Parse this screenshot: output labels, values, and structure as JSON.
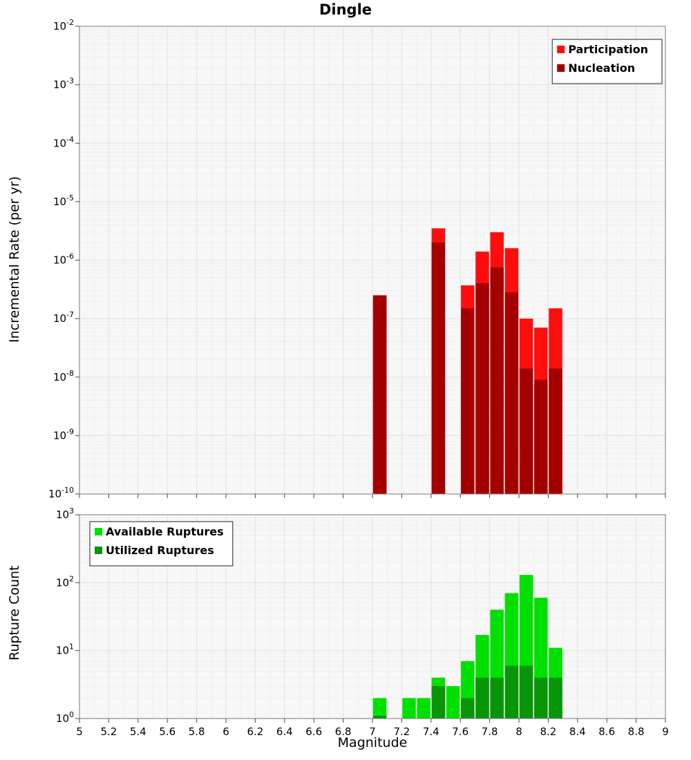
{
  "chart_data": [
    {
      "type": "bar",
      "title": "Dingle",
      "ylabel": "Incremental Rate (per yr)",
      "y_scale": "log",
      "ylim_exp": [
        -10,
        -2
      ],
      "xlim": [
        5,
        9
      ],
      "bin_width": 0.1,
      "grid": true,
      "legend_position": "top-right",
      "y_tick_exponents": [
        -2,
        -3,
        -4,
        -5,
        -6,
        -7,
        -8,
        -9,
        -10
      ],
      "x_ticks": [
        5,
        5.2,
        5.4,
        5.6,
        5.8,
        6,
        6.2,
        6.4,
        6.6,
        6.8,
        7,
        7.2,
        7.4,
        7.6,
        7.8,
        8,
        8.2,
        8.4,
        8.6,
        8.8,
        9
      ],
      "x_tick_labels": [
        "5",
        "5.2",
        "5.4",
        "5.6",
        "5.8",
        "6",
        "6.2",
        "6.4",
        "6.6",
        "6.8",
        "7",
        "7.2",
        "7.4",
        "7.6",
        "7.8",
        "8",
        "8.2",
        "8.4",
        "8.6",
        "8.8",
        "9"
      ],
      "x_tick_labels_visible": false,
      "series": [
        {
          "name": "Participation",
          "color": "#FF0D0D",
          "x": [
            7.05,
            7.45,
            7.65,
            7.75,
            7.85,
            7.95,
            8.05,
            8.15,
            8.25
          ],
          "values": [
            2.5e-07,
            3.5e-06,
            3.7e-07,
            1.4e-06,
            3e-06,
            1.6e-06,
            1e-07,
            7e-08,
            1.5e-07
          ]
        },
        {
          "name": "Nucleation",
          "color": "#A40000",
          "x": [
            7.05,
            7.45,
            7.65,
            7.75,
            7.85,
            7.95,
            8.05,
            8.15,
            8.25
          ],
          "values": [
            2.5e-07,
            2e-06,
            1.5e-07,
            4e-07,
            7.5e-07,
            2.8e-07,
            1.4e-08,
            9e-09,
            1.4e-08
          ]
        }
      ]
    },
    {
      "type": "bar",
      "title": "",
      "ylabel": "Rupture Count",
      "xlabel": "Magnitude",
      "y_scale": "log",
      "ylim_exp": [
        0,
        3
      ],
      "xlim": [
        5,
        9
      ],
      "bin_width": 0.1,
      "grid": true,
      "legend_position": "top-left",
      "y_tick_exponents": [
        3,
        2,
        1,
        0
      ],
      "x_ticks": [
        5,
        5.2,
        5.4,
        5.6,
        5.8,
        6,
        6.2,
        6.4,
        6.6,
        6.8,
        7,
        7.2,
        7.4,
        7.6,
        7.8,
        8,
        8.2,
        8.4,
        8.6,
        8.8,
        9
      ],
      "x_tick_labels": [
        "5",
        "5.2",
        "5.4",
        "5.6",
        "5.8",
        "6",
        "6.2",
        "6.4",
        "6.6",
        "6.8",
        "7",
        "7.2",
        "7.4",
        "7.6",
        "7.8",
        "8",
        "8.2",
        "8.4",
        "8.6",
        "8.8",
        "9"
      ],
      "x_tick_labels_visible": true,
      "series": [
        {
          "name": "Available Ruptures",
          "color": "#00E000",
          "x": [
            7.05,
            7.25,
            7.35,
            7.45,
            7.55,
            7.65,
            7.75,
            7.85,
            7.95,
            8.05,
            8.15,
            8.25
          ],
          "values": [
            2,
            2,
            2,
            4,
            3,
            7,
            17,
            40,
            70,
            130,
            60,
            11
          ]
        },
        {
          "name": "Utilized Ruptures",
          "color": "#089608",
          "x": [
            7.05,
            7.45,
            7.65,
            7.75,
            7.85,
            7.95,
            8.05,
            8.15,
            8.25
          ],
          "values": [
            1,
            3,
            2,
            4,
            4,
            6,
            6,
            4,
            4
          ]
        }
      ]
    }
  ]
}
